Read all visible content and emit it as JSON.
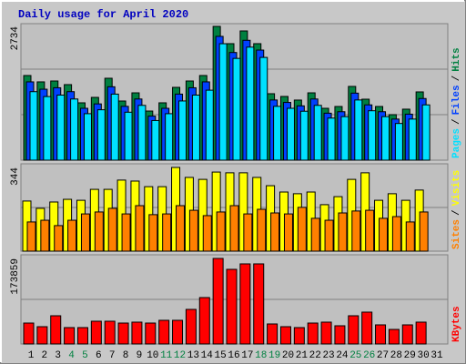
{
  "chart_data": [
    {
      "type": "bar",
      "title": "Daily usage for April 2020",
      "categories": [
        "1",
        "2",
        "3",
        "4",
        "5",
        "6",
        "7",
        "8",
        "9",
        "10",
        "11",
        "12",
        "13",
        "14",
        "15",
        "16",
        "17",
        "18",
        "19",
        "20",
        "21",
        "22",
        "23",
        "24",
        "25",
        "26",
        "27",
        "28",
        "29",
        "30",
        "31"
      ],
      "x_label_colors": [
        "#000000",
        "#000000",
        "#000000",
        "#008040",
        "#008040",
        "#000000",
        "#000000",
        "#000000",
        "#000000",
        "#000000",
        "#008040",
        "#008040",
        "#000000",
        "#000000",
        "#000000",
        "#000000",
        "#000000",
        "#008040",
        "#008040",
        "#000000",
        "#000000",
        "#000000",
        "#000000",
        "#000000",
        "#008040",
        "#008040",
        "#000000",
        "#000000",
        "#000000",
        "#000000",
        "#000000"
      ],
      "legend_separator": "/",
      "ylim": [
        0,
        2734
      ],
      "yticks": [
        2734
      ],
      "series": [
        {
          "name": "Hits",
          "color": "#008040",
          "values": [
            1730,
            1600,
            1618,
            1544,
            1172,
            1283,
            1674,
            1209,
            1376,
            1004,
            1172,
            1488,
            1618,
            1730,
            2734,
            2381,
            2641,
            2381,
            1358,
            1302,
            1228,
            1376,
            1060,
            1097,
            1507,
            1246,
            1097,
            930,
            1042,
            1395,
            null
          ]
        },
        {
          "name": "Files",
          "color": "#0040ff",
          "values": [
            1600,
            1450,
            1480,
            1400,
            1060,
            1150,
            1500,
            1100,
            1250,
            900,
            1060,
            1350,
            1480,
            1600,
            2530,
            2200,
            2450,
            2250,
            1230,
            1180,
            1110,
            1250,
            960,
            990,
            1370,
            1130,
            990,
            840,
            940,
            1260,
            null
          ]
        },
        {
          "name": "Pages",
          "color": "#00e0ff",
          "values": [
            1400,
            1300,
            1330,
            1250,
            950,
            1030,
            1350,
            980,
            1120,
            810,
            950,
            1210,
            1330,
            1430,
            2380,
            2080,
            2310,
            2100,
            1100,
            1060,
            1000,
            1120,
            860,
            890,
            1230,
            1010,
            890,
            750,
            840,
            1130,
            null
          ]
        }
      ]
    },
    {
      "type": "bar",
      "legend_separator": "/",
      "ylim": [
        0,
        344
      ],
      "yticks": [
        344
      ],
      "series": [
        {
          "name": "Visits",
          "color": "#ffff00",
          "values": [
            206,
            176,
            202,
            213,
            209,
            254,
            254,
            292,
            288,
            265,
            265,
            344,
            303,
            295,
            325,
            322,
            322,
            303,
            269,
            243,
            236,
            243,
            191,
            224,
            295,
            322,
            209,
            236,
            209,
            251,
            null
          ]
        },
        {
          "name": "Sites",
          "color": "#ff8000",
          "values": [
            120,
            127,
            105,
            127,
            153,
            161,
            176,
            153,
            187,
            150,
            153,
            187,
            168,
            146,
            161,
            187,
            153,
            172,
            157,
            153,
            180,
            135,
            127,
            157,
            165,
            168,
            135,
            142,
            120,
            161,
            null
          ]
        }
      ]
    },
    {
      "type": "bar",
      "ylim": [
        0,
        173859
      ],
      "yticks": [
        173859
      ],
      "series": [
        {
          "name": "KBytes",
          "color": "#ff0000",
          "values": [
            42540,
            35150,
            57350,
            33300,
            33300,
            46250,
            46250,
            42540,
            44400,
            42540,
            48100,
            48100,
            70300,
            94350,
            173859,
            151700,
            162800,
            162800,
            40700,
            35150,
            33300,
            42540,
            44400,
            37000,
            57350,
            64750,
            38850,
            29600,
            38850,
            44400,
            null
          ]
        }
      ]
    }
  ]
}
